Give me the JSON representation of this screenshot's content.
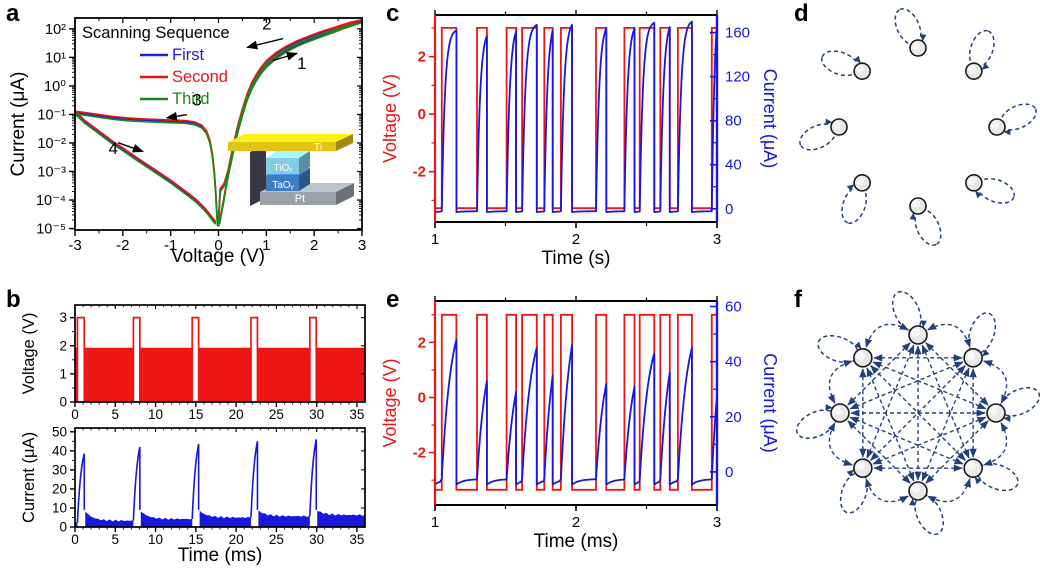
{
  "panels": {
    "a": {
      "label": "a"
    },
    "b": {
      "label": "b"
    },
    "c": {
      "label": "c"
    },
    "d": {
      "label": "d"
    },
    "e": {
      "label": "e"
    },
    "f": {
      "label": "f"
    }
  },
  "chart_data": [
    {
      "id": "a",
      "type": "line",
      "panel": "a",
      "xlabel": "Voltage (V)",
      "ylabel": "Current (μA)",
      "x_range": [
        -3,
        3
      ],
      "ylog_range": [
        -5.05,
        2.38
      ],
      "x_ticks": [
        -3,
        -2,
        -1,
        0,
        1,
        2,
        3
      ],
      "y_ticks": [
        {
          "exp": -5,
          "label": "10⁻⁵"
        },
        {
          "exp": -4,
          "label": "10⁻⁴"
        },
        {
          "exp": -3,
          "label": "10⁻³"
        },
        {
          "exp": -2,
          "label": "10⁻²"
        },
        {
          "exp": -1,
          "label": "10⁻¹"
        },
        {
          "exp": 0,
          "label": "10⁰"
        },
        {
          "exp": 1,
          "label": "10¹"
        },
        {
          "exp": 2,
          "label": "10²"
        }
      ],
      "legend": {
        "title": "Scanning Sequence",
        "items": [
          {
            "name": "First",
            "color": "#2020dd"
          },
          {
            "name": "Second",
            "color": "#ee1313"
          },
          {
            "name": "Third",
            "color": "#1b8a1b"
          }
        ]
      },
      "series": [
        {
          "name": "First",
          "color": "#2020dd",
          "dlog": 0
        },
        {
          "name": "Second",
          "color": "#ee1313",
          "dlog": 0.045
        },
        {
          "name": "Third",
          "color": "#1b8a1b",
          "dlog": -0.05
        }
      ],
      "sweep_vlogi": [
        [
          0.02,
          -4.8
        ],
        [
          0.06,
          -4.45
        ],
        [
          0.1,
          -4.1
        ],
        [
          0.15,
          -3.6
        ],
        [
          0.2,
          -3.15
        ],
        [
          0.3,
          -2.35
        ],
        [
          0.4,
          -1.6
        ],
        [
          0.5,
          -1.0
        ],
        [
          0.6,
          -0.45
        ],
        [
          0.7,
          -0.05
        ],
        [
          0.8,
          0.25
        ],
        [
          0.9,
          0.5
        ],
        [
          1.0,
          0.7
        ],
        [
          1.2,
          1.0
        ],
        [
          1.4,
          1.22
        ],
        [
          1.6,
          1.4
        ],
        [
          1.8,
          1.55
        ],
        [
          2.0,
          1.68
        ],
        [
          2.2,
          1.8
        ],
        [
          2.4,
          1.92
        ],
        [
          2.6,
          2.05
        ],
        [
          2.8,
          2.16
        ],
        [
          3.0,
          2.27
        ],
        [
          2.8,
          2.2
        ],
        [
          2.6,
          2.1
        ],
        [
          2.4,
          1.99
        ],
        [
          2.2,
          1.89
        ],
        [
          2.0,
          1.77
        ],
        [
          1.8,
          1.64
        ],
        [
          1.6,
          1.5
        ],
        [
          1.4,
          1.33
        ],
        [
          1.2,
          1.12
        ],
        [
          1.0,
          0.83
        ],
        [
          0.9,
          0.63
        ],
        [
          0.8,
          0.38
        ],
        [
          0.7,
          0.08
        ],
        [
          0.6,
          -0.32
        ],
        [
          0.5,
          -0.85
        ],
        [
          0.4,
          -1.45
        ],
        [
          0.3,
          -2.2
        ],
        [
          0.2,
          -3.0
        ],
        [
          0.12,
          -3.45
        ],
        [
          0.06,
          -3.6
        ],
        [
          0.035,
          -3.65
        ],
        [
          0.015,
          -4.3
        ],
        [
          0.005,
          -4.85
        ],
        [
          -0.02,
          -4.85
        ],
        [
          -0.04,
          -4.3
        ],
        [
          -0.06,
          -3.7
        ],
        [
          -0.09,
          -3.0
        ],
        [
          -0.13,
          -2.4
        ],
        [
          -0.18,
          -1.95
        ],
        [
          -0.25,
          -1.62
        ],
        [
          -0.35,
          -1.42
        ],
        [
          -0.5,
          -1.31
        ],
        [
          -0.7,
          -1.26
        ],
        [
          -1.0,
          -1.24
        ],
        [
          -1.3,
          -1.22
        ],
        [
          -1.6,
          -1.2
        ],
        [
          -1.9,
          -1.17
        ],
        [
          -2.2,
          -1.12
        ],
        [
          -2.5,
          -1.05
        ],
        [
          -2.75,
          -0.99
        ],
        [
          -3.0,
          -0.93
        ],
        [
          -2.8,
          -1.25
        ],
        [
          -2.6,
          -1.5
        ],
        [
          -2.4,
          -1.75
        ],
        [
          -2.2,
          -2.0
        ],
        [
          -2.0,
          -2.22
        ],
        [
          -1.8,
          -2.45
        ],
        [
          -1.6,
          -2.68
        ],
        [
          -1.4,
          -2.9
        ],
        [
          -1.2,
          -3.12
        ],
        [
          -1.0,
          -3.35
        ],
        [
          -0.8,
          -3.6
        ],
        [
          -0.6,
          -3.85
        ],
        [
          -0.45,
          -4.05
        ],
        [
          -0.3,
          -4.3
        ],
        [
          -0.2,
          -4.5
        ],
        [
          -0.12,
          -4.68
        ],
        [
          -0.06,
          -4.8
        ]
      ],
      "annotations": [
        {
          "text": "1",
          "tx": 1.74,
          "tlog": 0.6,
          "ax0": 1.14,
          "alog0": 0.89,
          "ax1": 1.64,
          "alog1": 1.14
        },
        {
          "text": "2",
          "tx": 1.01,
          "tlog": 1.97,
          "ax0": 1.35,
          "alog0": 1.66,
          "ax1": 0.6,
          "alog1": 1.35
        },
        {
          "text": "3",
          "tx": -0.45,
          "tlog": -0.68,
          "ax0": -0.66,
          "alog0": -1.01,
          "ax1": -1.08,
          "alog1": -1.12
        },
        {
          "text": "4",
          "tx": -2.2,
          "tlog": -2.38,
          "ax0": -2.1,
          "alog0": -1.99,
          "ax1": -1.58,
          "alog1": -2.3
        }
      ],
      "inset": {
        "layers": [
          {
            "name": "Ti",
            "color": "#e2c414"
          },
          {
            "name": "TiOₓ",
            "color": "#85cbe4"
          },
          {
            "name": "TaOᵧ",
            "color": "#3d7dc4"
          },
          {
            "name": "Pt",
            "color": "#9aa2ab"
          }
        ]
      }
    },
    {
      "id": "b_voltage",
      "type": "pulse-train",
      "panel": "b",
      "ylabel": "Voltage (V)",
      "x_range": [
        0,
        36
      ],
      "y_range": [
        0,
        3.45
      ],
      "x_ticks": [
        0,
        5,
        10,
        15,
        20,
        25,
        30,
        35
      ],
      "y_ticks": [
        0,
        1,
        2,
        3
      ],
      "base_level": 1.93,
      "pulse_level": 3.0,
      "pulses": [
        [
          0.3,
          1.15
        ],
        [
          7.25,
          8.05
        ],
        [
          14.55,
          15.35
        ],
        [
          21.85,
          22.65
        ],
        [
          29.15,
          29.95
        ]
      ],
      "color": "#ee1515"
    },
    {
      "id": "b_current",
      "type": "spike-train",
      "panel": "b",
      "ylabel": "Current (μA)",
      "xlabel": "Time (ms)",
      "x_range": [
        0,
        36
      ],
      "y_range": [
        0,
        52
      ],
      "x_ticks": [
        0,
        5,
        10,
        15,
        20,
        25,
        30,
        35
      ],
      "y_ticks": [
        0,
        10,
        20,
        30,
        40,
        50
      ],
      "pulses": [
        [
          0.3,
          1.15
        ],
        [
          7.25,
          8.05
        ],
        [
          14.55,
          15.35
        ],
        [
          21.85,
          22.65
        ],
        [
          29.15,
          29.95
        ]
      ],
      "peaks": [
        38.5,
        42,
        43.5,
        45,
        46
      ],
      "baselines": [
        2.2,
        3.3,
        4.2,
        5.0,
        5.7,
        6.3
      ],
      "post_drop": 9,
      "color": "#1717dd"
    },
    {
      "id": "c",
      "type": "dual-axis-pulse",
      "panel": "c",
      "xlabel": "Time (s)",
      "x_range": [
        1,
        3
      ],
      "x_ticks": [
        1,
        2,
        3
      ],
      "x_minor": [
        1.5,
        2.5
      ],
      "voltage": {
        "label": "Voltage (V)",
        "color": "#ee1515",
        "ticks": [
          -2,
          0,
          2
        ],
        "minor_ticks": [
          -3,
          -1,
          1,
          3
        ],
        "range": [
          -3.75,
          3.45
        ],
        "high": 3.0,
        "low": -3.27
      },
      "current": {
        "label": "Current (μA)",
        "color": "#1717dd",
        "ticks": [
          0,
          40,
          80,
          120,
          160
        ],
        "minor_ticks": [
          20,
          60,
          100,
          140
        ],
        "range": [
          -12,
          176
        ],
        "interpulse_level": -2.2,
        "rise_tau": 0.022,
        "peaks": [
          162,
          157,
          161,
          167,
          162,
          167,
          164,
          164,
          169,
          165,
          170,
          169
        ]
      },
      "pulses": [
        [
          1.048,
          1.152
        ],
        [
          1.298,
          1.368
        ],
        [
          1.508,
          1.575
        ],
        [
          1.618,
          1.722
        ],
        [
          1.775,
          1.835
        ],
        [
          1.893,
          1.972
        ],
        [
          2.142,
          2.215
        ],
        [
          2.343,
          2.415
        ],
        [
          2.452,
          2.555
        ],
        [
          2.598,
          2.665
        ],
        [
          2.723,
          2.822
        ],
        [
          2.963,
          3.0
        ]
      ]
    },
    {
      "id": "e",
      "type": "dual-axis-pulse",
      "panel": "e",
      "xlabel": "Time (ms)",
      "x_range": [
        1,
        3
      ],
      "x_ticks": [
        1,
        2,
        3
      ],
      "x_minor": [
        1.5,
        2.5
      ],
      "voltage": {
        "label": "Voltage (V)",
        "color": "#ee1515",
        "ticks": [
          -2,
          0,
          2
        ],
        "minor_ticks": [
          -3,
          -1,
          1,
          3
        ],
        "range": [
          -3.9,
          3.5
        ],
        "high": 3.0,
        "low": -3.35
      },
      "current": {
        "label": "Current (μA)",
        "color": "#1717dd",
        "ticks": [
          0,
          20,
          40,
          60
        ],
        "minor_ticks": [
          10,
          30,
          50
        ],
        "range": [
          -12,
          62
        ],
        "interpulse_level": -2.6,
        "dip": -4.6,
        "rise_tau": 0.065,
        "peaks": [
          48,
          33,
          29,
          45,
          35,
          46,
          32,
          31,
          43,
          36,
          45,
          28
        ]
      },
      "pulses": [
        [
          1.048,
          1.152
        ],
        [
          1.298,
          1.368
        ],
        [
          1.508,
          1.575
        ],
        [
          1.618,
          1.722
        ],
        [
          1.775,
          1.835
        ],
        [
          1.893,
          1.972
        ],
        [
          2.142,
          2.215
        ],
        [
          2.343,
          2.415
        ],
        [
          2.452,
          2.555
        ],
        [
          2.598,
          2.665
        ],
        [
          2.723,
          2.822
        ],
        [
          2.963,
          3.0
        ]
      ]
    }
  ],
  "diagrams": [
    {
      "id": "d",
      "panel": "d",
      "nodes": 8,
      "pattern": "self-loops",
      "node_fill": "#e8e8e8",
      "node_stroke": "#1a1a1a",
      "edge_color": "#24407c"
    },
    {
      "id": "f",
      "panel": "f",
      "nodes": 8,
      "pattern": "self-loops+all-to-all",
      "node_fill": "#e8e8e8",
      "node_stroke": "#1a1a1a",
      "edge_color": "#24407c"
    }
  ]
}
